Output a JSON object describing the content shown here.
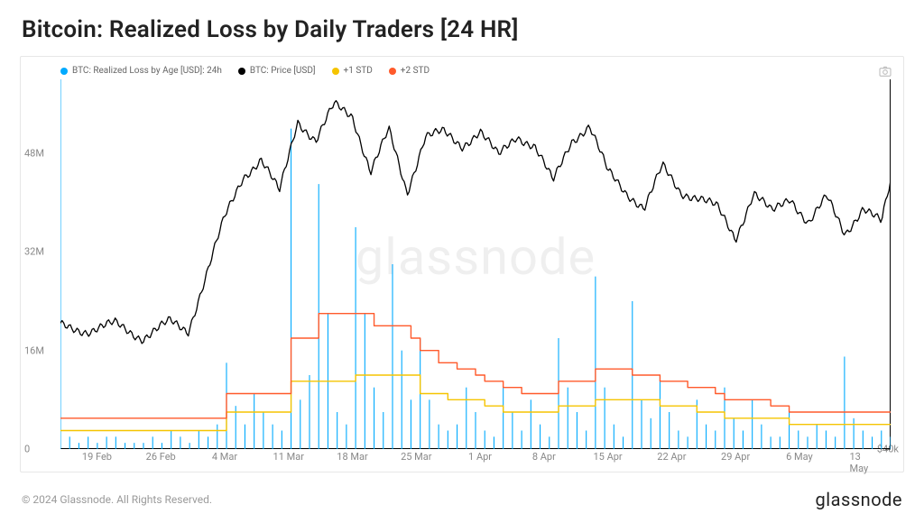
{
  "title": "Bitcoin: Realized Loss by Daily Traders [24 HR]",
  "watermark": "glassnode",
  "footer": {
    "copyright": "© 2024 Glassnode. All Rights Reserved.",
    "brand": "glassnode"
  },
  "legend": {
    "items": [
      {
        "label": "BTC: Realized Loss by Age [USD]: 24h",
        "dot_style": "background:#00aaff"
      },
      {
        "label": "BTC: Price [USD]",
        "dot_style": "background:#000000"
      },
      {
        "label": "+1 STD",
        "dot_style": "background:#f5c400"
      },
      {
        "label": "+2 STD",
        "dot_style": "background:#ff5a2b"
      }
    ]
  },
  "chart": {
    "background_color": "#ffffff",
    "axis_color": "#000000",
    "tick_font_size": 11,
    "x": {
      "domain_days": 91,
      "tick_labels": [
        "19 Feb",
        "26 Feb",
        "4 Mar",
        "11 Mar",
        "18 Mar",
        "25 Mar",
        "1 Apr",
        "8 Apr",
        "15 Apr",
        "22 Apr",
        "29 Apr",
        "6 May",
        "13 May"
      ],
      "first_tick_day_index": 4,
      "tick_step_days": 7
    },
    "y_left": {
      "min": 0,
      "max": 60000000,
      "ticks": [
        0,
        16000000,
        32000000,
        48000000
      ],
      "tick_labels": [
        "0",
        "16M",
        "32M",
        "48M"
      ]
    },
    "y_right": {
      "min": 40000,
      "max": 76000,
      "ticks": [
        40000
      ],
      "tick_labels": [
        "$40k"
      ]
    },
    "series": {
      "loss_24h": {
        "color": "#00aaff",
        "line_width": 1.1,
        "style": "bars",
        "values": [
          60,
          2,
          1,
          2,
          1,
          2,
          2,
          1,
          1,
          1,
          2,
          1,
          3,
          2,
          1,
          3,
          2,
          4,
          14,
          7,
          4,
          9,
          6,
          4,
          3,
          52,
          8,
          12,
          43,
          22,
          6,
          4,
          36,
          22,
          10,
          6,
          30,
          16,
          8,
          18,
          8,
          4,
          3,
          4,
          10,
          6,
          3,
          2,
          10,
          6,
          3,
          8,
          4,
          2,
          18,
          10,
          6,
          3,
          28,
          10,
          4,
          2,
          24,
          8,
          5,
          12,
          6,
          3,
          2,
          8,
          4,
          3,
          10,
          5,
          3,
          8,
          4,
          2,
          2,
          6,
          3,
          2,
          4,
          3,
          2,
          15,
          5,
          3,
          2,
          3,
          2
        ]
      },
      "std1": {
        "color": "#f5c400",
        "line_width": 1.4,
        "style": "step",
        "values": [
          3,
          3,
          3,
          3,
          3,
          3,
          3,
          3,
          3,
          3,
          3,
          3,
          3,
          3,
          3,
          3,
          3,
          3,
          6,
          6,
          6,
          6,
          6,
          6,
          6,
          11,
          11,
          11,
          11,
          11,
          11,
          11,
          12,
          12,
          12,
          12,
          12,
          12,
          12,
          9,
          9,
          9,
          8,
          8,
          8,
          8,
          7,
          7,
          6,
          6,
          6,
          6,
          6,
          6,
          7,
          7,
          7,
          7,
          8,
          8,
          8,
          8,
          8,
          8,
          8,
          7,
          7,
          7,
          7,
          6,
          6,
          6,
          5,
          5,
          5,
          5,
          5,
          5,
          5,
          4,
          4,
          4,
          4,
          4,
          4,
          4,
          4,
          4,
          4,
          4,
          4
        ]
      },
      "std2": {
        "color": "#ff5a2b",
        "line_width": 1.4,
        "style": "step",
        "values": [
          5,
          5,
          5,
          5,
          5,
          5,
          5,
          5,
          5,
          5,
          5,
          5,
          5,
          5,
          5,
          5,
          5,
          5,
          9,
          9,
          9,
          9,
          9,
          9,
          9,
          18,
          18,
          18,
          22,
          22,
          22,
          22,
          22,
          22,
          20,
          20,
          20,
          20,
          18,
          16,
          16,
          14,
          14,
          13,
          13,
          12,
          11,
          11,
          10,
          10,
          9,
          9,
          9,
          9,
          11,
          11,
          11,
          11,
          13,
          13,
          13,
          13,
          12,
          12,
          12,
          11,
          11,
          11,
          10,
          10,
          10,
          9,
          8,
          8,
          8,
          8,
          8,
          7,
          7,
          6,
          6,
          6,
          6,
          6,
          6,
          6,
          6,
          6,
          6,
          6,
          6
        ]
      },
      "price": {
        "color": "#000000",
        "line_width": 1.3,
        "style": "line_noisy",
        "noise_amp": 600,
        "anchors": [
          [
            0,
            52000
          ],
          [
            3,
            51500
          ],
          [
            6,
            52200
          ],
          [
            9,
            50800
          ],
          [
            12,
            52400
          ],
          [
            14,
            51500
          ],
          [
            16,
            57000
          ],
          [
            18,
            62500
          ],
          [
            20,
            66500
          ],
          [
            22,
            68200
          ],
          [
            24,
            65000
          ],
          [
            26,
            72000
          ],
          [
            28,
            70000
          ],
          [
            30,
            73500
          ],
          [
            32,
            72500
          ],
          [
            34,
            67000
          ],
          [
            36,
            71000
          ],
          [
            38,
            65000
          ],
          [
            40,
            70500
          ],
          [
            42,
            70800
          ],
          [
            44,
            69500
          ],
          [
            46,
            71000
          ],
          [
            48,
            68500
          ],
          [
            50,
            70500
          ],
          [
            52,
            69500
          ],
          [
            54,
            66000
          ],
          [
            56,
            70000
          ],
          [
            58,
            71500
          ],
          [
            60,
            67000
          ],
          [
            62,
            65000
          ],
          [
            64,
            63500
          ],
          [
            66,
            67500
          ],
          [
            68,
            65000
          ],
          [
            70,
            64500
          ],
          [
            72,
            63500
          ],
          [
            74,
            60500
          ],
          [
            76,
            65000
          ],
          [
            78,
            63000
          ],
          [
            80,
            64500
          ],
          [
            82,
            62000
          ],
          [
            84,
            64500
          ],
          [
            86,
            61000
          ],
          [
            88,
            63500
          ],
          [
            90,
            62000
          ],
          [
            91,
            66000
          ]
        ]
      }
    }
  }
}
